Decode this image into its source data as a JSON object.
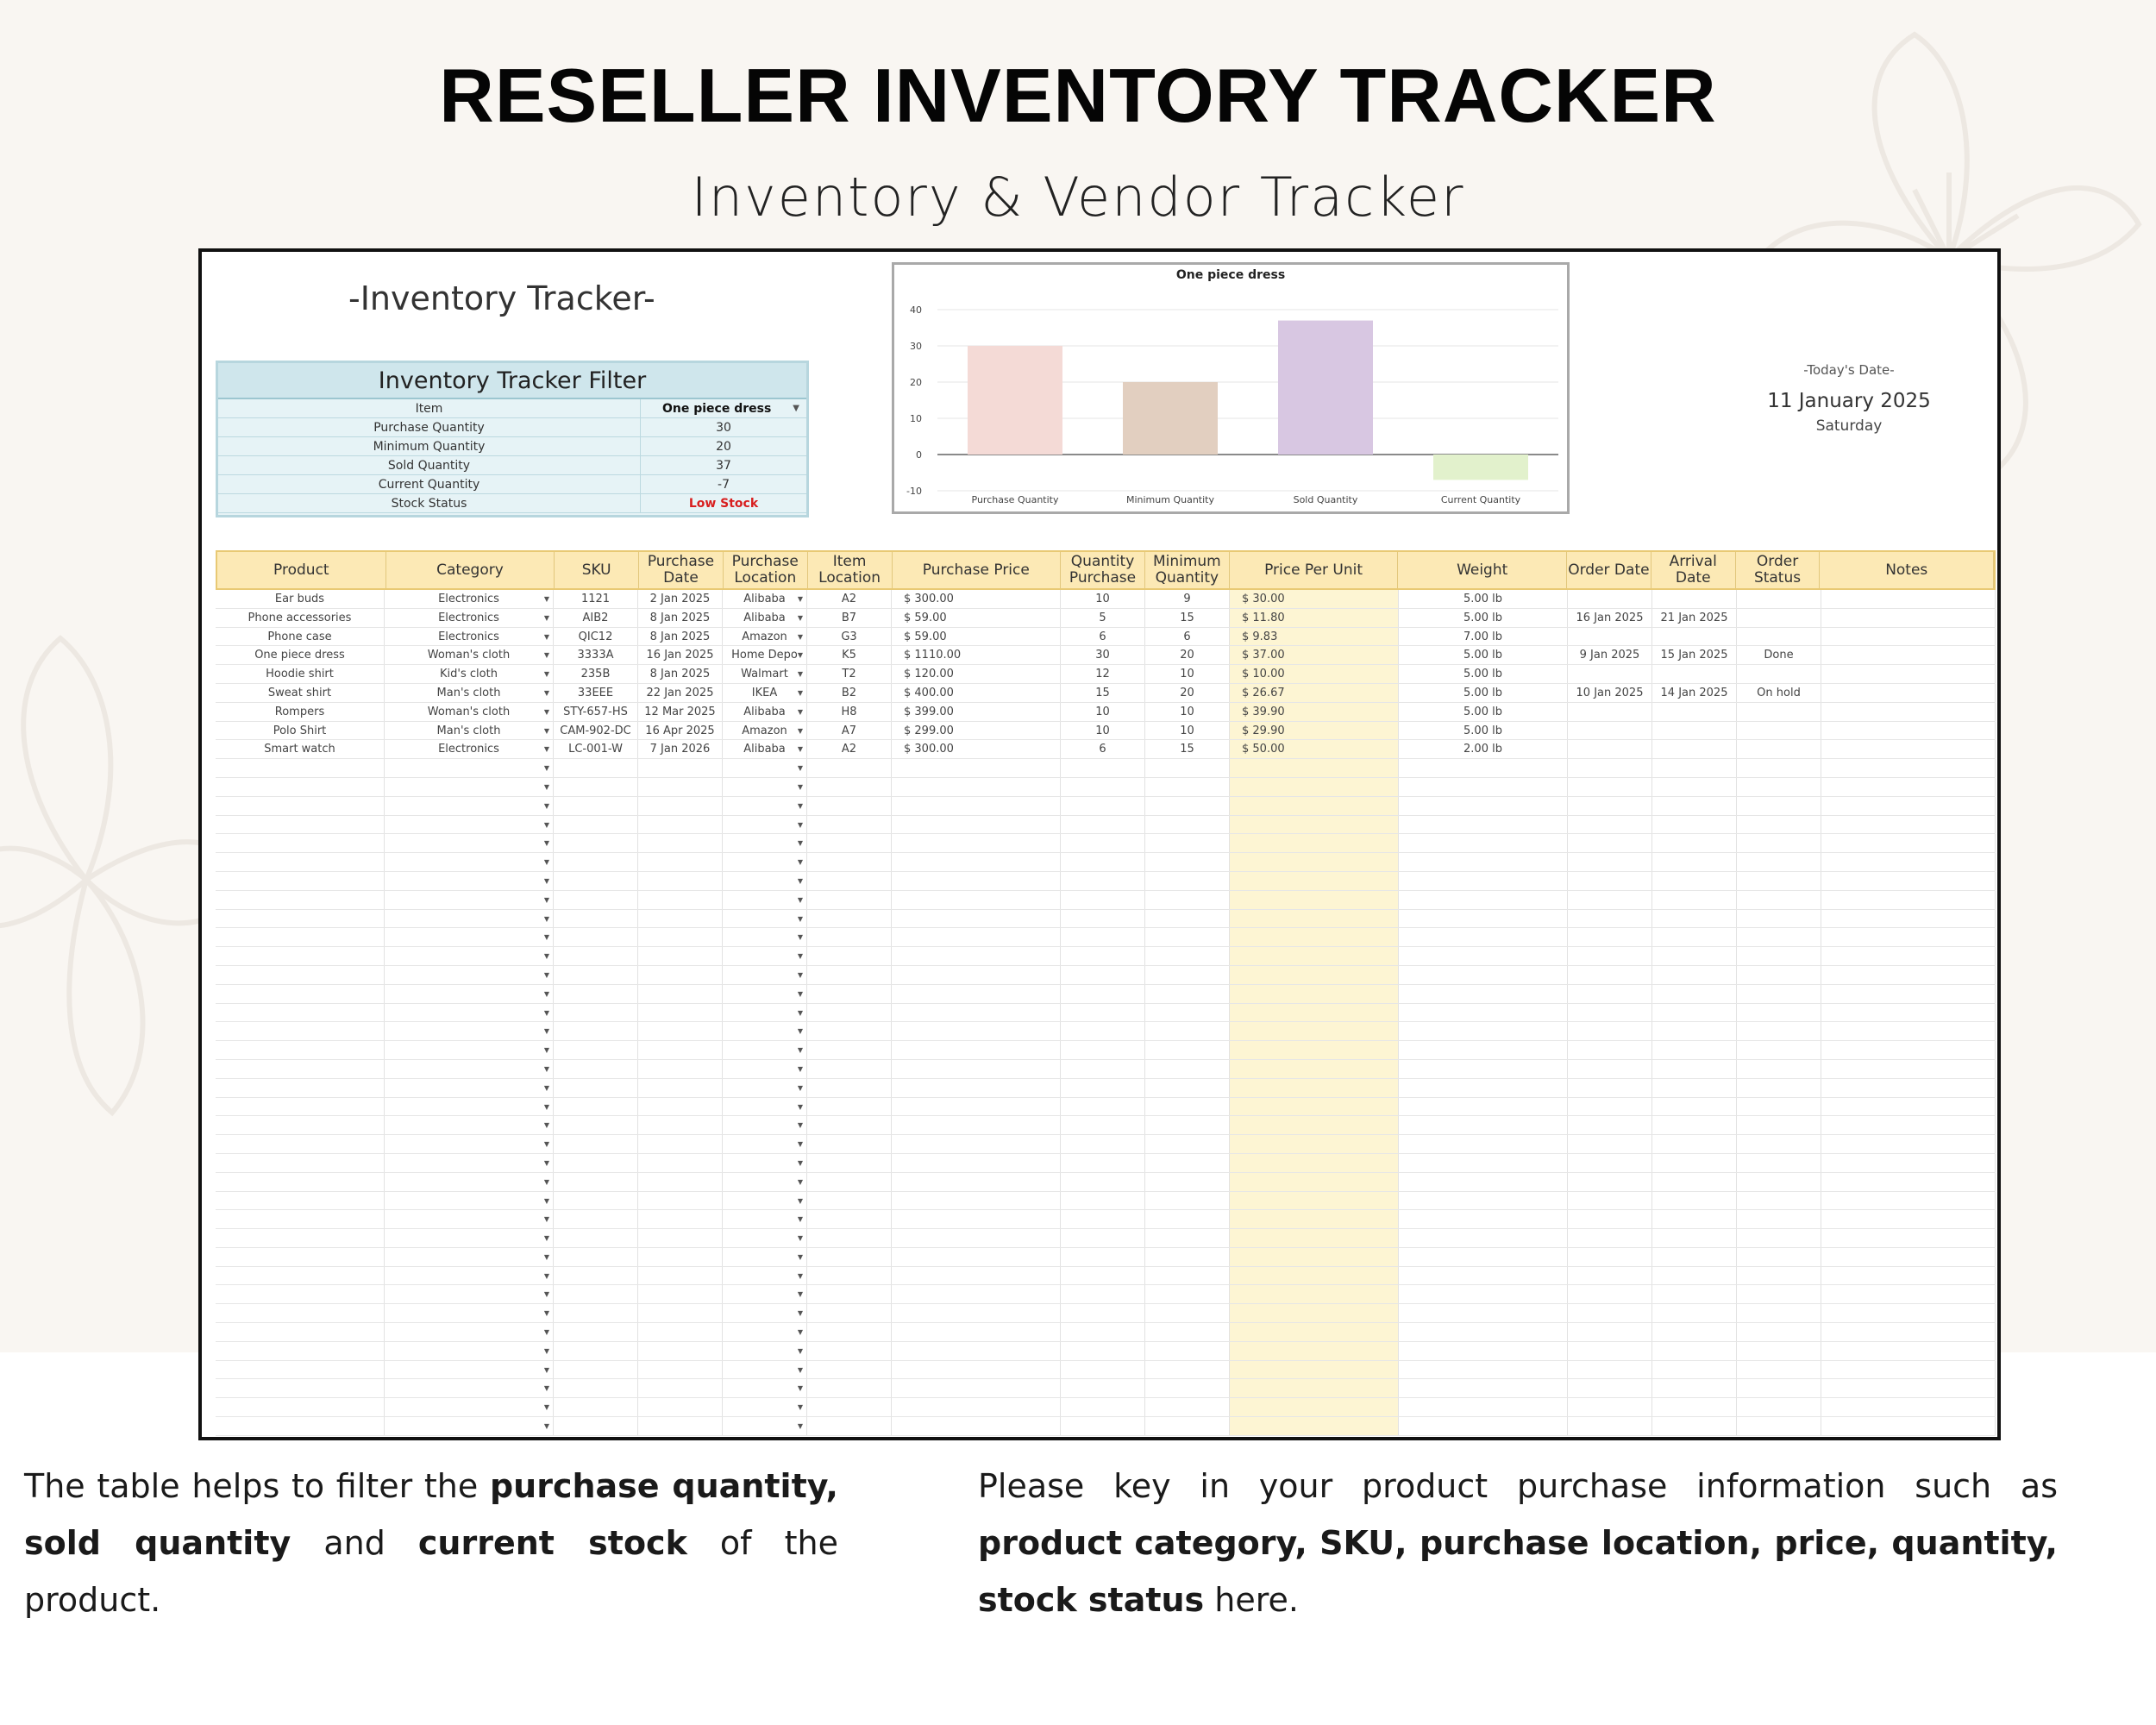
{
  "page": {
    "title": "RESELLER INVENTORY TRACKER",
    "subtitle": "Inventory & Vendor Tracker"
  },
  "sheet": {
    "title": "-Inventory Tracker-",
    "filter": {
      "title": "Inventory Tracker Filter",
      "rows": [
        {
          "label": "Item",
          "value": "One piece dress"
        },
        {
          "label": "Purchase Quantity",
          "value": "30"
        },
        {
          "label": "Minimum Quantity",
          "value": "20"
        },
        {
          "label": "Sold Quantity",
          "value": "37"
        },
        {
          "label": "Current Quantity",
          "value": "-7"
        },
        {
          "label": "Stock Status",
          "value": "Low Stock"
        }
      ]
    },
    "date": {
      "label": "-Today's Date-",
      "value": "11 January 2025",
      "day": "Saturday"
    }
  },
  "chart_data": {
    "type": "bar",
    "title": "One piece dress",
    "categories": [
      "Purchase Quantity",
      "Minimum Quantity",
      "Sold Quantity",
      "Current Quantity"
    ],
    "values": [
      30,
      20,
      37,
      -7
    ],
    "colors": [
      "#f4dad6",
      "#e2cfc0",
      "#d8c7e2",
      "#e2f1cc"
    ],
    "yticks": [
      "40",
      "30",
      "20",
      "10",
      "0",
      "-10"
    ],
    "ylim": [
      -10,
      40
    ],
    "grid": true,
    "legend": "none"
  },
  "table": {
    "headers": [
      "Product",
      "Category",
      "SKU",
      "Purchase Date",
      "Purchase Location",
      "Item Location",
      "Purchase Price",
      "Quantity Purchase",
      "Minimum Quantity",
      "Price Per Unit",
      "Weight",
      "Order Date",
      "Arrival Date",
      "Order Status",
      "Notes"
    ],
    "rows": [
      [
        "Ear buds",
        "Electronics",
        "1121",
        "2 Jan 2025",
        "Alibaba",
        "A2",
        "$ 300.00",
        "10",
        "9",
        "$ 30.00",
        "5.00 lb",
        "",
        "",
        "",
        ""
      ],
      [
        "Phone accessories",
        "Electronics",
        "AIB2",
        "8 Jan 2025",
        "Alibaba",
        "B7",
        "$ 59.00",
        "5",
        "15",
        "$ 11.80",
        "5.00 lb",
        "16 Jan 2025",
        "21 Jan 2025",
        "",
        ""
      ],
      [
        "Phone case",
        "Electronics",
        "QIC12",
        "8 Jan 2025",
        "Amazon",
        "G3",
        "$ 59.00",
        "6",
        "6",
        "$ 9.83",
        "7.00 lb",
        "",
        "",
        "",
        ""
      ],
      [
        "One piece dress",
        "Woman's cloth",
        "3333A",
        "16 Jan 2025",
        "Home Depo",
        "K5",
        "$ 1110.00",
        "30",
        "20",
        "$ 37.00",
        "5.00 lb",
        "9 Jan 2025",
        "15 Jan 2025",
        "Done",
        ""
      ],
      [
        "Hoodie shirt",
        "Kid's cloth",
        "235B",
        "8 Jan 2025",
        "Walmart",
        "T2",
        "$ 120.00",
        "12",
        "10",
        "$ 10.00",
        "5.00 lb",
        "",
        "",
        "",
        ""
      ],
      [
        "Sweat shirt",
        "Man's cloth",
        "33EEE",
        "22 Jan 2025",
        "IKEA",
        "B2",
        "$ 400.00",
        "15",
        "20",
        "$ 26.67",
        "5.00 lb",
        "10 Jan 2025",
        "14 Jan 2025",
        "On hold",
        ""
      ],
      [
        "Rompers",
        "Woman's cloth",
        "STY-657-HS",
        "12 Mar 2025",
        "Alibaba",
        "H8",
        "$ 399.00",
        "10",
        "10",
        "$ 39.90",
        "5.00 lb",
        "",
        "",
        "",
        ""
      ],
      [
        "Polo Shirt",
        "Man's cloth",
        "CAM-902-DC",
        "16 Apr 2025",
        "Amazon",
        "A7",
        "$ 299.00",
        "10",
        "10",
        "$ 29.90",
        "5.00 lb",
        "",
        "",
        "",
        ""
      ],
      [
        "Smart watch",
        "Electronics",
        "LC-001-W",
        "7 Jan 2026",
        "Alibaba",
        "A2",
        "$ 300.00",
        "6",
        "15",
        "$ 50.00",
        "2.00 lb",
        "",
        "",
        "",
        ""
      ]
    ],
    "empty_rows": 36
  },
  "description": {
    "left": {
      "p1": "The table helps to filter the ",
      "b1": "purchase quantity, sold quantity",
      "p2": " and ",
      "b2": "current stock",
      "p3": " of the product."
    },
    "right": {
      "p1": "Please key in your product purchase information such as ",
      "b1": "product category, SKU, purchase location, price, quantity, stock status",
      "p2": " here."
    }
  }
}
